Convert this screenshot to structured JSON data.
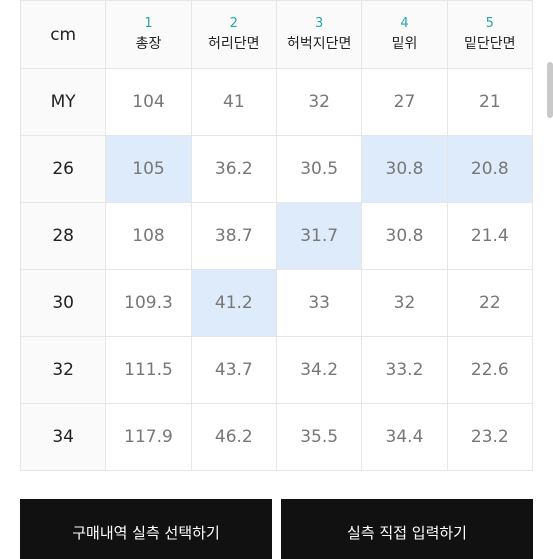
{
  "table": {
    "corner_label": "cm",
    "columns": [
      {
        "num": "1",
        "name": "총장"
      },
      {
        "num": "2",
        "name": "허리단면"
      },
      {
        "num": "3",
        "name": "허벅지단면"
      },
      {
        "num": "4",
        "name": "밑위"
      },
      {
        "num": "5",
        "name": "밑단단면"
      }
    ],
    "rows": [
      {
        "label": "MY",
        "values": [
          "104",
          "41",
          "32",
          "27",
          "21"
        ]
      },
      {
        "label": "26",
        "values": [
          "105",
          "36.2",
          "30.5",
          "30.8",
          "20.8"
        ]
      },
      {
        "label": "28",
        "values": [
          "108",
          "38.7",
          "31.7",
          "30.8",
          "21.4"
        ]
      },
      {
        "label": "30",
        "values": [
          "109.3",
          "41.2",
          "33",
          "32",
          "22"
        ]
      },
      {
        "label": "32",
        "values": [
          "111.5",
          "43.7",
          "34.2",
          "33.2",
          "22.6"
        ]
      },
      {
        "label": "34",
        "values": [
          "117.9",
          "46.2",
          "35.5",
          "34.4",
          "23.2"
        ]
      }
    ],
    "highlight_color": "#ddebfb"
  },
  "buttons": {
    "select_purchase_label": "구매내역 실측 선택하기",
    "direct_input_label": "실측 직접 입력하기"
  }
}
